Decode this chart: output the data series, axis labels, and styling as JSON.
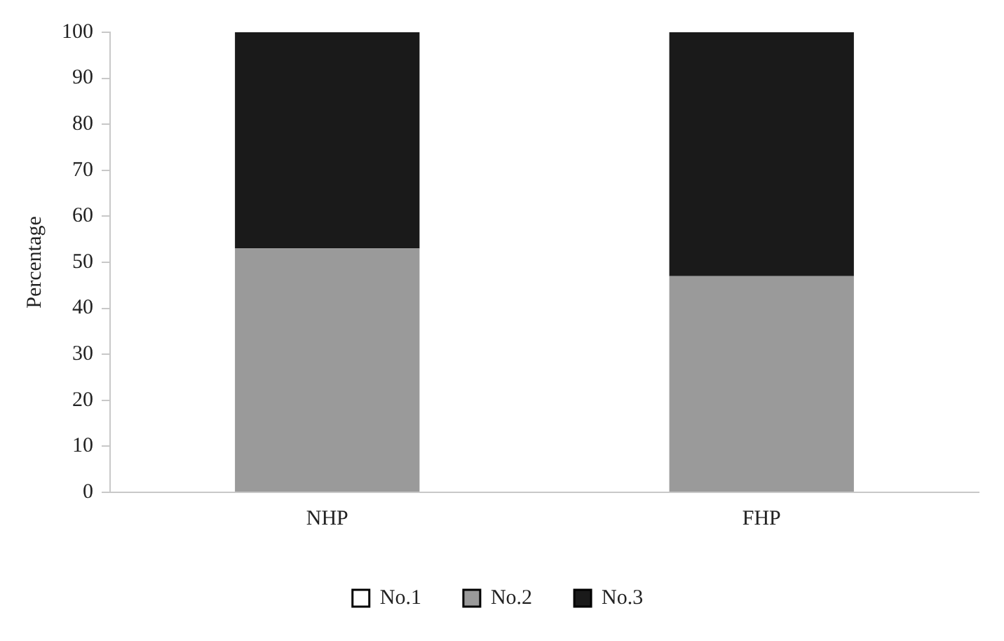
{
  "chart_data": {
    "type": "bar",
    "stacked": true,
    "ylabel": "Percentage",
    "categories": [
      "NHP",
      "FHP"
    ],
    "series": [
      {
        "name": "No.1",
        "color": "#ffffff",
        "values": [
          0,
          0
        ]
      },
      {
        "name": "No.2",
        "color": "#9a9a9a",
        "values": [
          53,
          47
        ]
      },
      {
        "name": "No.3",
        "color": "#1a1a1a",
        "values": [
          47,
          53
        ]
      }
    ],
    "ylim": [
      0,
      100
    ],
    "yticks": [
      0,
      10,
      20,
      30,
      40,
      50,
      60,
      70,
      80,
      90,
      100
    ],
    "grid": false,
    "legend": "bottom"
  }
}
